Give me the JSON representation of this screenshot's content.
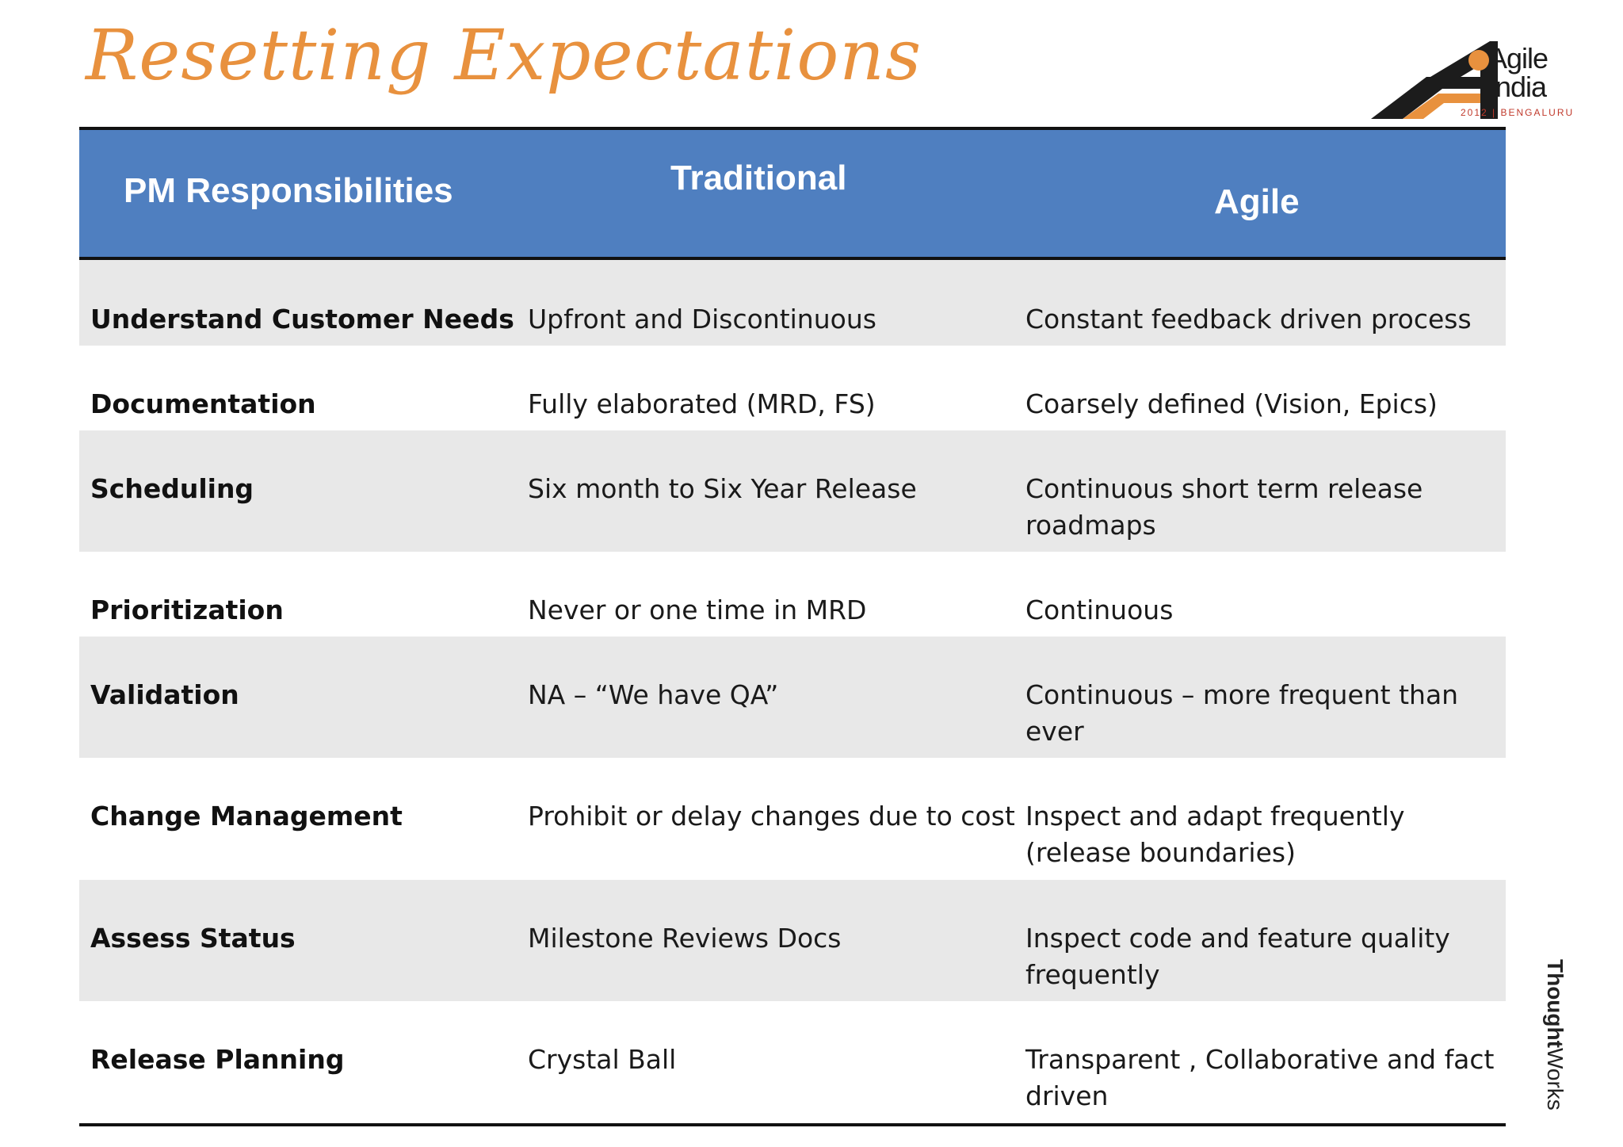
{
  "slide": {
    "title": "Resetting Expectations"
  },
  "logo": {
    "line1": "Agile",
    "line2": "India",
    "subtitle": "2012 | BENGALURU",
    "orange": "#e8913e"
  },
  "table": {
    "headers": {
      "col1": "PM Responsibilities",
      "col2": "Traditional",
      "col3": "Agile"
    },
    "rows": [
      {
        "responsibility": "Understand Customer Needs",
        "traditional": "Upfront and Discontinuous",
        "agile": "Constant feedback driven process"
      },
      {
        "responsibility": "Documentation",
        "traditional": "Fully elaborated (MRD, FS)",
        "agile": "Coarsely defined (Vision, Epics)"
      },
      {
        "responsibility": "Scheduling",
        "traditional": "Six month to Six Year Release",
        "agile": "Continuous short term  release roadmaps"
      },
      {
        "responsibility": "Prioritization",
        "traditional": "Never or one time in MRD",
        "agile": "Continuous"
      },
      {
        "responsibility": "Validation",
        "traditional": "NA – “We have QA”",
        "agile": "Continuous – more frequent than ever"
      },
      {
        "responsibility": "Change Management",
        "traditional": "Prohibit or delay changes due to cost",
        "agile": "Inspect and adapt frequently (release boundaries)"
      },
      {
        "responsibility": "Assess Status",
        "traditional": "Milestone Reviews Docs",
        "agile": "Inspect code and feature quality frequently"
      },
      {
        "responsibility": "Release Planning",
        "traditional": "Crystal Ball",
        "agile": "Transparent , Collaborative and fact driven"
      }
    ],
    "header_color": "#4f7fc0",
    "stripe_color": "#e8e8e8"
  },
  "brand": {
    "bold": "Thought",
    "regular": "Works"
  }
}
